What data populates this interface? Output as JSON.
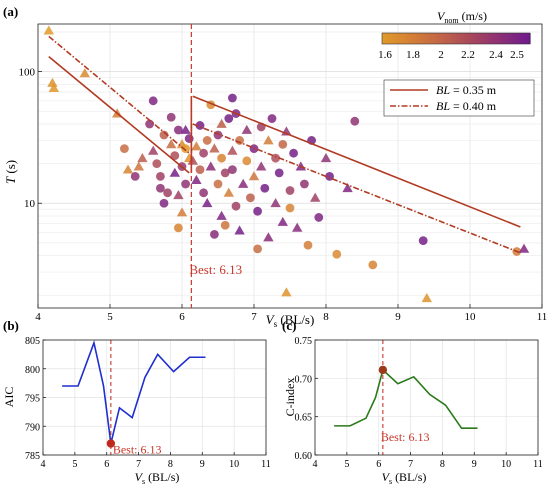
{
  "colors": {
    "cmap": [
      "#e09a2a",
      "#d47f36",
      "#c16448",
      "#a8475c",
      "#8c2f76",
      "#6e1a8c"
    ],
    "trend": "#b23a22",
    "best_line": "#c8382c",
    "aic_line": "#1f2fd0",
    "cindex_line": "#2a7a1a",
    "best_point": "#c0281e",
    "best_point_c": "#9a3a1a"
  },
  "chart_data": [
    {
      "panel": "(a)",
      "type": "scatter",
      "xlabel": "V_s (BL/s)",
      "ylabel": "T (s)",
      "xlim": [
        4,
        11
      ],
      "ylim": [
        1.6,
        230
      ],
      "yscale": "log",
      "xticks": [
        4,
        5,
        6,
        7,
        8,
        9,
        10,
        11
      ],
      "yticks": [
        {
          "value": 10,
          "label": "10"
        },
        {
          "value": 100,
          "label": "100"
        }
      ],
      "colorbar": {
        "title": "V_nom (m/s)",
        "range": [
          1.6,
          2.5
        ],
        "ticks": [
          "1.6",
          "1.8",
          "2",
          "2.2",
          "2.4",
          "2.5"
        ]
      },
      "legend": [
        {
          "label": "BL = 0.35 m",
          "style": "solid"
        },
        {
          "label": "BL = 0.40 m",
          "style": "dashed"
        }
      ],
      "best": {
        "x": 6.13,
        "label": "Best: 6.13"
      },
      "trend_035": [
        {
          "x": [
            4.15,
            6.1
          ],
          "y": [
            130,
            17
          ]
        },
        {
          "x": [
            6.15,
            10.7
          ],
          "y": [
            65,
            6.6
          ]
        }
      ],
      "trend_040": [
        {
          "x": [
            4.15,
            6.1
          ],
          "y": [
            185,
            24
          ]
        },
        {
          "x": [
            6.15,
            10.7
          ],
          "y": [
            40,
            4.2
          ]
        }
      ],
      "points": [
        {
          "x": 4.15,
          "y": 205,
          "v": 1.6,
          "m": "t"
        },
        {
          "x": 4.2,
          "y": 82,
          "v": 1.65,
          "m": "t"
        },
        {
          "x": 4.22,
          "y": 75,
          "v": 1.62,
          "m": "t"
        },
        {
          "x": 4.65,
          "y": 97,
          "v": 1.7,
          "m": "t"
        },
        {
          "x": 5.1,
          "y": 48,
          "v": 1.8,
          "m": "t"
        },
        {
          "x": 5.2,
          "y": 26,
          "v": 1.9,
          "m": "c"
        },
        {
          "x": 5.25,
          "y": 18,
          "v": 1.75,
          "m": "t"
        },
        {
          "x": 5.4,
          "y": 19,
          "v": 1.85,
          "m": "t"
        },
        {
          "x": 5.45,
          "y": 22,
          "v": 2.0,
          "m": "t"
        },
        {
          "x": 5.55,
          "y": 40,
          "v": 2.3,
          "m": "c"
        },
        {
          "x": 5.6,
          "y": 60,
          "v": 2.4,
          "m": "c"
        },
        {
          "x": 5.65,
          "y": 20,
          "v": 2.1,
          "m": "c"
        },
        {
          "x": 5.7,
          "y": 16,
          "v": 2.2,
          "m": "c"
        },
        {
          "x": 5.7,
          "y": 13,
          "v": 2.3,
          "m": "c"
        },
        {
          "x": 5.75,
          "y": 33,
          "v": 2.0,
          "m": "c"
        },
        {
          "x": 5.75,
          "y": 10,
          "v": 2.4,
          "m": "c"
        },
        {
          "x": 5.8,
          "y": 12,
          "v": 2.2,
          "m": "c"
        },
        {
          "x": 5.85,
          "y": 28,
          "v": 1.9,
          "m": "t"
        },
        {
          "x": 5.85,
          "y": 45,
          "v": 2.3,
          "m": "c"
        },
        {
          "x": 5.9,
          "y": 17,
          "v": 2.45,
          "m": "t"
        },
        {
          "x": 5.9,
          "y": 23,
          "v": 2.1,
          "m": "c"
        },
        {
          "x": 5.95,
          "y": 36,
          "v": 2.35,
          "m": "c"
        },
        {
          "x": 5.95,
          "y": 11.5,
          "v": 2.2,
          "m": "t"
        },
        {
          "x": 6.0,
          "y": 28,
          "v": 1.7,
          "m": "t"
        },
        {
          "x": 6.0,
          "y": 19,
          "v": 2.25,
          "m": "c"
        },
        {
          "x": 6.0,
          "y": 8.5,
          "v": 1.8,
          "m": "t"
        },
        {
          "x": 6.05,
          "y": 26,
          "v": 1.6,
          "m": "c"
        },
        {
          "x": 6.05,
          "y": 14,
          "v": 2.3,
          "m": "c"
        },
        {
          "x": 6.1,
          "y": 22,
          "v": 1.65,
          "m": "t"
        },
        {
          "x": 6.1,
          "y": 31,
          "v": 2.4,
          "m": "c"
        },
        {
          "x": 6.15,
          "y": 21,
          "v": 2.1,
          "m": "t"
        },
        {
          "x": 6.2,
          "y": 27,
          "v": 1.8,
          "m": "t"
        },
        {
          "x": 6.2,
          "y": 15,
          "v": 2.4,
          "m": "t"
        },
        {
          "x": 6.25,
          "y": 18,
          "v": 2.0,
          "m": "c"
        },
        {
          "x": 6.25,
          "y": 39,
          "v": 2.45,
          "m": "c"
        },
        {
          "x": 6.3,
          "y": 24,
          "v": 2.2,
          "m": "c"
        },
        {
          "x": 6.3,
          "y": 12,
          "v": 2.3,
          "m": "c"
        },
        {
          "x": 6.35,
          "y": 30,
          "v": 1.9,
          "m": "c"
        },
        {
          "x": 6.35,
          "y": 10,
          "v": 2.45,
          "m": "t"
        },
        {
          "x": 6.4,
          "y": 56,
          "v": 1.7,
          "m": "c"
        },
        {
          "x": 6.4,
          "y": 19,
          "v": 2.35,
          "m": "t"
        },
        {
          "x": 6.45,
          "y": 26,
          "v": 2.0,
          "m": "t"
        },
        {
          "x": 6.5,
          "y": 14,
          "v": 1.9,
          "m": "c"
        },
        {
          "x": 6.5,
          "y": 33,
          "v": 2.3,
          "m": "c"
        },
        {
          "x": 6.55,
          "y": 22,
          "v": 1.75,
          "m": "c"
        },
        {
          "x": 6.55,
          "y": 8,
          "v": 2.4,
          "m": "t"
        },
        {
          "x": 6.6,
          "y": 17,
          "v": 2.2,
          "m": "c"
        },
        {
          "x": 6.6,
          "y": 6.8,
          "v": 1.85,
          "m": "c"
        },
        {
          "x": 6.65,
          "y": 44,
          "v": 2.45,
          "m": "c"
        },
        {
          "x": 6.65,
          "y": 12,
          "v": 1.8,
          "m": "t"
        },
        {
          "x": 6.7,
          "y": 25,
          "v": 2.1,
          "m": "t"
        },
        {
          "x": 6.7,
          "y": 18,
          "v": 2.3,
          "m": "c"
        },
        {
          "x": 6.75,
          "y": 48,
          "v": 2.4,
          "m": "c"
        },
        {
          "x": 6.75,
          "y": 9.5,
          "v": 2.2,
          "m": "c"
        },
        {
          "x": 6.8,
          "y": 30,
          "v": 1.9,
          "m": "c"
        },
        {
          "x": 6.8,
          "y": 6.2,
          "v": 2.45,
          "m": "t"
        },
        {
          "x": 6.85,
          "y": 14,
          "v": 2.35,
          "m": "t"
        },
        {
          "x": 6.9,
          "y": 21,
          "v": 1.7,
          "m": "c"
        },
        {
          "x": 6.9,
          "y": 36,
          "v": 2.3,
          "m": "t"
        },
        {
          "x": 6.95,
          "y": 11,
          "v": 2.0,
          "m": "c"
        },
        {
          "x": 7.0,
          "y": 26,
          "v": 2.4,
          "m": "c"
        },
        {
          "x": 7.0,
          "y": 16,
          "v": 1.85,
          "m": "t"
        },
        {
          "x": 7.05,
          "y": 4.5,
          "v": 1.9,
          "m": "c"
        },
        {
          "x": 7.05,
          "y": 8.7,
          "v": 2.45,
          "m": "c"
        },
        {
          "x": 7.1,
          "y": 38,
          "v": 2.2,
          "m": "c"
        },
        {
          "x": 7.1,
          "y": 19,
          "v": 2.3,
          "m": "t"
        },
        {
          "x": 7.15,
          "y": 13,
          "v": 2.45,
          "m": "c"
        },
        {
          "x": 7.2,
          "y": 30,
          "v": 1.8,
          "m": "t"
        },
        {
          "x": 7.2,
          "y": 5.5,
          "v": 2.35,
          "m": "t"
        },
        {
          "x": 7.25,
          "y": 44,
          "v": 2.4,
          "m": "c"
        },
        {
          "x": 7.3,
          "y": 22,
          "v": 2.1,
          "m": "c"
        },
        {
          "x": 7.3,
          "y": 10,
          "v": 2.3,
          "m": "t"
        },
        {
          "x": 7.35,
          "y": 17,
          "v": 2.45,
          "m": "c"
        },
        {
          "x": 7.4,
          "y": 28,
          "v": 1.95,
          "m": "c"
        },
        {
          "x": 7.4,
          "y": 7.2,
          "v": 2.4,
          "m": "t"
        },
        {
          "x": 7.45,
          "y": 35,
          "v": 2.3,
          "m": "t"
        },
        {
          "x": 7.5,
          "y": 12.5,
          "v": 2.2,
          "m": "c"
        },
        {
          "x": 7.5,
          "y": 9.2,
          "v": 1.75,
          "m": "c"
        },
        {
          "x": 7.55,
          "y": 24,
          "v": 2.45,
          "m": "c"
        },
        {
          "x": 7.6,
          "y": 6.5,
          "v": 2.35,
          "m": "t"
        },
        {
          "x": 7.65,
          "y": 19,
          "v": 2.4,
          "m": "t"
        },
        {
          "x": 7.7,
          "y": 14,
          "v": 2.3,
          "m": "c"
        },
        {
          "x": 7.75,
          "y": 4.8,
          "v": 1.8,
          "m": "c"
        },
        {
          "x": 7.8,
          "y": 30,
          "v": 2.45,
          "m": "c"
        },
        {
          "x": 7.85,
          "y": 11,
          "v": 2.2,
          "m": "t"
        },
        {
          "x": 7.9,
          "y": 7.8,
          "v": 2.4,
          "m": "c"
        },
        {
          "x": 8.0,
          "y": 22,
          "v": 2.3,
          "m": "t"
        },
        {
          "x": 8.05,
          "y": 16,
          "v": 2.45,
          "m": "c"
        },
        {
          "x": 8.15,
          "y": 4.1,
          "v": 1.7,
          "m": "c"
        },
        {
          "x": 8.3,
          "y": 13,
          "v": 2.4,
          "m": "t"
        },
        {
          "x": 8.4,
          "y": 42,
          "v": 2.3,
          "m": "c"
        },
        {
          "x": 8.65,
          "y": 3.4,
          "v": 1.75,
          "m": "c"
        },
        {
          "x": 9.35,
          "y": 5.2,
          "v": 2.45,
          "m": "c"
        },
        {
          "x": 9.4,
          "y": 1.9,
          "v": 1.65,
          "m": "t"
        },
        {
          "x": 10.65,
          "y": 4.3,
          "v": 1.8,
          "m": "c"
        },
        {
          "x": 10.75,
          "y": 4.5,
          "v": 2.4,
          "m": "t"
        },
        {
          "x": 7.45,
          "y": 2.1,
          "v": 1.65,
          "m": "t"
        },
        {
          "x": 5.95,
          "y": 6.5,
          "v": 1.75,
          "m": "c"
        },
        {
          "x": 6.45,
          "y": 5.8,
          "v": 2.35,
          "m": "c"
        },
        {
          "x": 6.05,
          "y": 36,
          "v": 2.45,
          "m": "t"
        },
        {
          "x": 6.7,
          "y": 63,
          "v": 2.45,
          "m": "c"
        },
        {
          "x": 5.35,
          "y": 16,
          "v": 2.3,
          "m": "c"
        },
        {
          "x": 5.6,
          "y": 25,
          "v": 2.2,
          "m": "t"
        },
        {
          "x": 6.55,
          "y": 40,
          "v": 2.0,
          "m": "t"
        }
      ]
    },
    {
      "panel": "(b)",
      "type": "line",
      "xlabel": "V_s (BL/s)",
      "ylabel": "AIC",
      "xlim": [
        4,
        11
      ],
      "ylim": [
        785,
        805
      ],
      "xticks": [
        4,
        5,
        6,
        7,
        8,
        9,
        10,
        11
      ],
      "yticks": [
        785,
        790,
        795,
        800,
        805
      ],
      "x": [
        4.6,
        5.1,
        5.6,
        5.9,
        6.13,
        6.4,
        6.8,
        7.2,
        7.6,
        8.1,
        8.6,
        9.1
      ],
      "y": [
        797.0,
        797.0,
        804.5,
        797.0,
        787.0,
        793.2,
        791.5,
        798.5,
        802.5,
        799.5,
        802.0,
        802.0
      ],
      "best": {
        "x": 6.13,
        "y": 787,
        "label": "Best: 6.13"
      }
    },
    {
      "panel": "(c)",
      "type": "line",
      "xlabel": "V_s (BL/s)",
      "ylabel": "C-index",
      "xlim": [
        4,
        11
      ],
      "ylim": [
        0.6,
        0.75
      ],
      "xticks": [
        4,
        5,
        6,
        7,
        8,
        9,
        10,
        11
      ],
      "yticks": [
        0.6,
        0.65,
        0.7,
        0.75
      ],
      "x": [
        4.6,
        5.1,
        5.6,
        5.9,
        6.13,
        6.6,
        7.1,
        7.6,
        8.1,
        8.6,
        9.1
      ],
      "y": [
        0.638,
        0.638,
        0.648,
        0.675,
        0.711,
        0.693,
        0.702,
        0.679,
        0.665,
        0.635,
        0.635
      ],
      "best": {
        "x": 6.13,
        "y": 0.711,
        "label": "Best: 6.13"
      }
    }
  ]
}
